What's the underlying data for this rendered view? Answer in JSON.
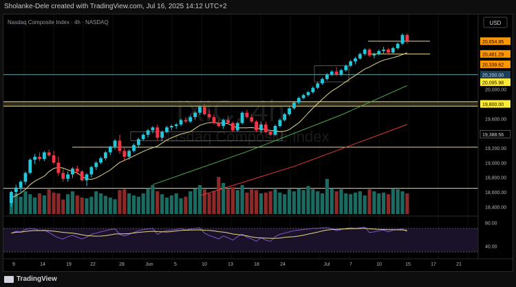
{
  "header": {
    "attribution": "Sholanke-Dele created with TradingView.com, Jul 16, 2025 14:12 UTC+2"
  },
  "chart": {
    "symbol_title": "Nasdaq Composite Index · 4h · NASDAQ",
    "watermark_symbol": "IXIC, 4h",
    "watermark_name": "Nasdaq Composite Index",
    "currency_button": "USD",
    "colors": {
      "up": "#26c6da",
      "down": "#f23645",
      "ma_fast": "#e7d98b",
      "ma_mid": "#4caf50",
      "ma_slow": "#e53935",
      "rsi": "#7e57c2",
      "rsi_ma": "#e7d98b"
    },
    "price_labels": [
      {
        "text": "20,654.85",
        "value": 20654.85,
        "style": "orange"
      },
      {
        "text": "20,481.29",
        "value": 20481.29,
        "style": "orange"
      },
      {
        "text": "20,339.62",
        "value": 20339.62,
        "style": "orange"
      },
      {
        "text": "20,200.00",
        "value": 20200.0,
        "style": "teal"
      },
      {
        "text": "20,095.98",
        "value": 20095.98,
        "style": "yellow"
      },
      {
        "text": "19,800.00",
        "value": 19800.0,
        "style": "yellow"
      },
      {
        "text": "19,388.56",
        "value": 19388.56,
        "style": "white"
      }
    ],
    "y_ticks": [
      {
        "text": "20,000.00",
        "value": 20000
      },
      {
        "text": "19,600.00",
        "value": 19600
      },
      {
        "text": "19,200.00",
        "value": 19200
      },
      {
        "text": "19,000.00",
        "value": 19000
      },
      {
        "text": "18,800.00",
        "value": 18800
      },
      {
        "text": "18,600.00",
        "value": 18600
      },
      {
        "text": "18,400.00",
        "value": 18400
      }
    ],
    "rsi_ticks": [
      {
        "text": "80.00",
        "value": 80
      },
      {
        "text": "40.00",
        "value": 40
      }
    ],
    "x_ticks": [
      "9",
      "14",
      "19",
      "22",
      "28",
      "Jun",
      "5",
      "10",
      "13",
      "18",
      "24",
      "Jul",
      "7",
      "10",
      "15",
      "17",
      "21"
    ],
    "candles": [
      [
        18450,
        18620,
        18400,
        18600
      ],
      [
        18600,
        18700,
        18560,
        18660
      ],
      [
        18660,
        18760,
        18600,
        18740
      ],
      [
        18740,
        18880,
        18700,
        18860
      ],
      [
        18860,
        19060,
        18840,
        19040
      ],
      [
        19040,
        19120,
        18980,
        19080
      ],
      [
        19080,
        19140,
        19020,
        19050
      ],
      [
        19050,
        19160,
        19020,
        19140
      ],
      [
        19140,
        19180,
        19080,
        19100
      ],
      [
        19100,
        19160,
        18980,
        19000
      ],
      [
        19000,
        19080,
        18820,
        18860
      ],
      [
        18860,
        18920,
        18740,
        18780
      ],
      [
        18780,
        18880,
        18740,
        18840
      ],
      [
        18840,
        18940,
        18790,
        18920
      ],
      [
        18920,
        18960,
        18840,
        18880
      ],
      [
        18880,
        18900,
        18740,
        18760
      ],
      [
        18760,
        18860,
        18680,
        18840
      ],
      [
        18840,
        18960,
        18800,
        18940
      ],
      [
        18940,
        19020,
        18900,
        19000
      ],
      [
        19000,
        19080,
        18980,
        19060
      ],
      [
        19060,
        19160,
        19030,
        19140
      ],
      [
        19140,
        19230,
        19100,
        19220
      ],
      [
        19220,
        19320,
        19180,
        19300
      ],
      [
        19300,
        19380,
        19120,
        19160
      ],
      [
        19160,
        19200,
        19020,
        19080
      ],
      [
        19080,
        19180,
        19040,
        19160
      ],
      [
        19160,
        19260,
        19140,
        19240
      ],
      [
        19240,
        19340,
        19200,
        19320
      ],
      [
        19320,
        19400,
        19300,
        19380
      ],
      [
        19380,
        19460,
        19340,
        19440
      ],
      [
        19440,
        19500,
        19400,
        19480
      ],
      [
        19480,
        19520,
        19300,
        19340
      ],
      [
        19340,
        19440,
        19300,
        19420
      ],
      [
        19420,
        19500,
        19400,
        19480
      ],
      [
        19480,
        19520,
        19440,
        19500
      ],
      [
        19500,
        19540,
        19460,
        19520
      ],
      [
        19520,
        19600,
        19500,
        19580
      ],
      [
        19580,
        19620,
        19540,
        19560
      ],
      [
        19560,
        19640,
        19540,
        19620
      ],
      [
        19620,
        19700,
        19580,
        19680
      ],
      [
        19680,
        19780,
        19650,
        19760
      ],
      [
        19760,
        19800,
        19640,
        19660
      ],
      [
        19660,
        19720,
        19600,
        19620
      ],
      [
        19620,
        19660,
        19520,
        19540
      ],
      [
        19540,
        19580,
        19480,
        19500
      ],
      [
        19500,
        19600,
        19460,
        19580
      ],
      [
        19580,
        19640,
        19520,
        19540
      ],
      [
        19540,
        19560,
        19420,
        19440
      ],
      [
        19440,
        19560,
        19420,
        19540
      ],
      [
        19540,
        19700,
        19520,
        19680
      ],
      [
        19680,
        19720,
        19600,
        19620
      ],
      [
        19620,
        19660,
        19540,
        19560
      ],
      [
        19560,
        19580,
        19420,
        19440
      ],
      [
        19440,
        19560,
        19400,
        19520
      ],
      [
        19520,
        19560,
        19400,
        19420
      ],
      [
        19420,
        19440,
        19360,
        19380
      ],
      [
        19380,
        19520,
        19360,
        19500
      ],
      [
        19500,
        19600,
        19480,
        19580
      ],
      [
        19580,
        19680,
        19560,
        19660
      ],
      [
        19660,
        19760,
        19640,
        19740
      ],
      [
        19740,
        19840,
        19720,
        19820
      ],
      [
        19820,
        19900,
        19800,
        19880
      ],
      [
        19880,
        19940,
        19860,
        19920
      ],
      [
        19920,
        19980,
        19900,
        19960
      ],
      [
        19960,
        20040,
        19940,
        20020
      ],
      [
        20020,
        20100,
        20000,
        20080
      ],
      [
        20080,
        20160,
        20060,
        20140
      ],
      [
        20140,
        20220,
        20120,
        20200
      ],
      [
        20200,
        20260,
        20180,
        20240
      ],
      [
        20240,
        20300,
        20180,
        20200
      ],
      [
        20200,
        20280,
        20180,
        20260
      ],
      [
        20260,
        20340,
        20240,
        20320
      ],
      [
        20320,
        20400,
        20300,
        20380
      ],
      [
        20380,
        20440,
        20340,
        20420
      ],
      [
        20420,
        20500,
        20400,
        20480
      ],
      [
        20480,
        20560,
        20460,
        20540
      ],
      [
        20540,
        20560,
        20440,
        20460
      ],
      [
        20460,
        20500,
        20420,
        20480
      ],
      [
        20480,
        20540,
        20460,
        20520
      ],
      [
        20520,
        20580,
        20480,
        20540
      ],
      [
        20540,
        20560,
        20480,
        20500
      ],
      [
        20500,
        20580,
        20480,
        20560
      ],
      [
        20560,
        20640,
        20540,
        20620
      ],
      [
        20620,
        20760,
        20600,
        20740
      ],
      [
        20740,
        20760,
        20620,
        20660
      ]
    ],
    "volume": [
      0.45,
      0.5,
      0.42,
      0.55,
      0.48,
      0.4,
      0.5,
      0.45,
      0.6,
      0.52,
      0.5,
      0.35,
      0.48,
      0.55,
      0.45,
      0.4,
      0.38,
      0.42,
      0.55,
      0.5,
      0.44,
      0.4,
      0.36,
      0.58,
      0.6,
      0.5,
      0.45,
      0.42,
      0.5,
      0.62,
      0.7,
      0.55,
      0.48,
      0.4,
      0.45,
      0.5,
      0.38,
      0.42,
      0.55,
      0.62,
      0.7,
      0.6,
      0.5,
      0.55,
      0.9,
      0.75,
      0.6,
      0.65,
      0.58,
      0.7,
      0.52,
      0.6,
      0.58,
      0.5,
      0.52,
      0.55,
      0.6,
      0.52,
      0.48,
      0.6,
      0.55,
      0.62,
      0.58,
      0.68,
      0.6,
      0.55,
      0.5,
      0.85,
      0.62,
      0.55,
      0.6,
      0.5,
      0.48,
      0.52,
      0.55,
      0.45,
      0.6,
      0.55,
      0.5,
      0.52,
      0.48,
      0.62,
      0.6,
      0.55,
      0.5
    ],
    "rsi": [
      62,
      65,
      64,
      68,
      70,
      69,
      66,
      67,
      63,
      58,
      54,
      52,
      56,
      58,
      55,
      52,
      55,
      60,
      62,
      64,
      66,
      68,
      69,
      60,
      57,
      60,
      63,
      66,
      68,
      69,
      70,
      60,
      64,
      66,
      67,
      68,
      70,
      67,
      69,
      70,
      71,
      62,
      58,
      55,
      52,
      57,
      54,
      50,
      56,
      60,
      55,
      52,
      48,
      54,
      50,
      48,
      56,
      60,
      62,
      64,
      66,
      67,
      68,
      69,
      70,
      70,
      71,
      71,
      70,
      66,
      68,
      70,
      71,
      70,
      71,
      72,
      63,
      64,
      66,
      67,
      64,
      67,
      68,
      69,
      64
    ]
  }
}
